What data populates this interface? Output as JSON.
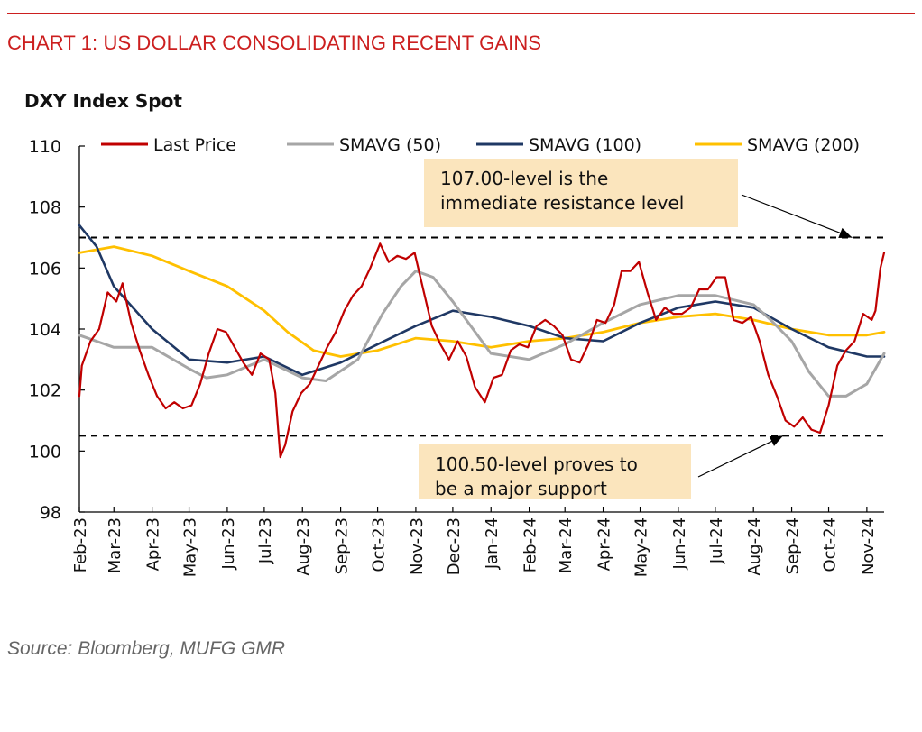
{
  "header": {
    "heading": "CHART 1: US DOLLAR CONSOLIDATING RECENT GAINS",
    "source": "Source: Bloomberg, MUFG GMR"
  },
  "colors": {
    "accent": "#cc1f1f",
    "last_price": "#c00000",
    "smavg50": "#a6a6a6",
    "smavg100": "#1f3864",
    "smavg200": "#ffc000",
    "annotation_bg": "#fbe5bd"
  },
  "chart_data": {
    "type": "line",
    "title": "DXY Index Spot",
    "ylim": [
      98,
      110
    ],
    "yticks": [
      98,
      100,
      102,
      104,
      106,
      108,
      110
    ],
    "xlim": [
      "2023-02-01",
      "2024-11-15"
    ],
    "x_tick_labels": [
      "Feb-23",
      "Mar-23",
      "Apr-23",
      "May-23",
      "Jun-23",
      "Jul-23",
      "Aug-23",
      "Sep-23",
      "Oct-23",
      "Nov-23",
      "Dec-23",
      "Jan-24",
      "Feb-24",
      "Mar-24",
      "Apr-24",
      "May-24",
      "Jun-24",
      "Jul-24",
      "Aug-24",
      "Sep-24",
      "Oct-24",
      "Nov-24"
    ],
    "legend_position": "top",
    "grid": false,
    "reference_lines": [
      {
        "y": 107.0,
        "style": "dashed"
      },
      {
        "y": 100.5,
        "style": "dashed"
      }
    ],
    "annotations": [
      {
        "text_lines": [
          "107.00-level is the",
          "immediate resistance level"
        ],
        "arrow_to": {
          "x": "2024-10-20",
          "y": 107.0
        }
      },
      {
        "text_lines": [
          "100.50-level proves to",
          "be a major support"
        ],
        "arrow_to": {
          "x": "2024-08-25",
          "y": 100.5
        }
      }
    ],
    "series": [
      {
        "name": "Last Price",
        "x": [
          "2023-02-01",
          "2023-02-03",
          "2023-02-10",
          "2023-02-17",
          "2023-02-24",
          "2023-03-03",
          "2023-03-08",
          "2023-03-15",
          "2023-03-22",
          "2023-03-29",
          "2023-04-05",
          "2023-04-12",
          "2023-04-19",
          "2023-04-26",
          "2023-05-03",
          "2023-05-10",
          "2023-05-17",
          "2023-05-24",
          "2023-05-31",
          "2023-06-07",
          "2023-06-14",
          "2023-06-21",
          "2023-06-28",
          "2023-07-05",
          "2023-07-10",
          "2023-07-14",
          "2023-07-18",
          "2023-07-24",
          "2023-07-31",
          "2023-08-07",
          "2023-08-14",
          "2023-08-21",
          "2023-08-28",
          "2023-09-04",
          "2023-09-11",
          "2023-09-18",
          "2023-09-25",
          "2023-10-03",
          "2023-10-10",
          "2023-10-17",
          "2023-10-24",
          "2023-10-31",
          "2023-11-07",
          "2023-11-14",
          "2023-11-21",
          "2023-11-28",
          "2023-12-05",
          "2023-12-12",
          "2023-12-19",
          "2023-12-27",
          "2024-01-03",
          "2024-01-10",
          "2024-01-17",
          "2024-01-24",
          "2024-01-31",
          "2024-02-07",
          "2024-02-14",
          "2024-02-21",
          "2024-02-28",
          "2024-03-06",
          "2024-03-13",
          "2024-03-20",
          "2024-03-27",
          "2024-04-03",
          "2024-04-10",
          "2024-04-16",
          "2024-04-23",
          "2024-04-30",
          "2024-05-07",
          "2024-05-14",
          "2024-05-21",
          "2024-05-28",
          "2024-06-04",
          "2024-06-11",
          "2024-06-18",
          "2024-06-25",
          "2024-07-02",
          "2024-07-09",
          "2024-07-16",
          "2024-07-23",
          "2024-07-30",
          "2024-08-06",
          "2024-08-13",
          "2024-08-20",
          "2024-08-27",
          "2024-09-03",
          "2024-09-10",
          "2024-09-17",
          "2024-09-24",
          "2024-10-01",
          "2024-10-08",
          "2024-10-15",
          "2024-10-22",
          "2024-10-29",
          "2024-11-05",
          "2024-11-08",
          "2024-11-12",
          "2024-11-15"
        ],
        "values": [
          101.8,
          102.8,
          103.6,
          104.0,
          105.2,
          104.9,
          105.5,
          104.2,
          103.3,
          102.5,
          101.8,
          101.4,
          101.6,
          101.4,
          101.5,
          102.2,
          103.2,
          104.0,
          103.9,
          103.4,
          102.9,
          102.5,
          103.2,
          103.0,
          101.9,
          99.8,
          100.2,
          101.3,
          101.9,
          102.2,
          102.8,
          103.4,
          103.9,
          104.6,
          105.1,
          105.4,
          106.0,
          106.8,
          106.2,
          106.4,
          106.3,
          106.5,
          105.3,
          104.1,
          103.5,
          103.0,
          103.6,
          103.1,
          102.1,
          101.6,
          102.4,
          102.5,
          103.3,
          103.5,
          103.4,
          104.1,
          104.3,
          104.1,
          103.8,
          103.0,
          102.9,
          103.5,
          104.3,
          104.2,
          104.8,
          105.9,
          105.9,
          106.2,
          105.2,
          104.3,
          104.7,
          104.5,
          104.5,
          104.7,
          105.3,
          105.3,
          105.7,
          105.7,
          104.3,
          104.2,
          104.4,
          103.6,
          102.5,
          101.8,
          101.0,
          100.8,
          101.1,
          100.7,
          100.6,
          101.5,
          102.8,
          103.3,
          103.6,
          104.5,
          104.3,
          104.6,
          106.0,
          106.5
        ]
      },
      {
        "name": "SMAVG (50)",
        "x": [
          "2023-02-01",
          "2023-03-01",
          "2023-04-01",
          "2023-05-01",
          "2023-05-15",
          "2023-06-01",
          "2023-07-01",
          "2023-08-01",
          "2023-08-20",
          "2023-09-15",
          "2023-10-05",
          "2023-10-20",
          "2023-11-01",
          "2023-11-15",
          "2023-12-01",
          "2024-01-01",
          "2024-02-01",
          "2024-03-01",
          "2024-04-01",
          "2024-05-01",
          "2024-06-01",
          "2024-07-01",
          "2024-08-01",
          "2024-08-15",
          "2024-09-01",
          "2024-09-15",
          "2024-10-01",
          "2024-10-15",
          "2024-11-01",
          "2024-11-15"
        ],
        "values": [
          103.8,
          103.4,
          103.4,
          102.7,
          102.4,
          102.5,
          103.0,
          102.4,
          102.3,
          103.0,
          104.5,
          105.4,
          105.9,
          105.7,
          104.9,
          103.2,
          103.0,
          103.5,
          104.2,
          104.8,
          105.1,
          105.1,
          104.8,
          104.3,
          103.6,
          102.6,
          101.8,
          101.8,
          102.2,
          103.2
        ]
      },
      {
        "name": "SMAVG (100)",
        "x": [
          "2023-02-01",
          "2023-02-15",
          "2023-03-01",
          "2023-04-01",
          "2023-05-01",
          "2023-06-01",
          "2023-07-01",
          "2023-08-01",
          "2023-09-01",
          "2023-10-01",
          "2023-11-01",
          "2023-12-01",
          "2024-01-01",
          "2024-02-01",
          "2024-03-01",
          "2024-04-01",
          "2024-05-01",
          "2024-06-01",
          "2024-07-01",
          "2024-08-01",
          "2024-09-01",
          "2024-10-01",
          "2024-11-01",
          "2024-11-15"
        ],
        "values": [
          107.4,
          106.7,
          105.4,
          104.0,
          103.0,
          102.9,
          103.1,
          102.5,
          102.9,
          103.5,
          104.1,
          104.6,
          104.4,
          104.1,
          103.7,
          103.6,
          104.2,
          104.7,
          104.9,
          104.7,
          104.0,
          103.4,
          103.1,
          103.1
        ]
      },
      {
        "name": "SMAVG (200)",
        "x": [
          "2023-02-01",
          "2023-03-01",
          "2023-04-01",
          "2023-05-01",
          "2023-06-01",
          "2023-07-01",
          "2023-07-20",
          "2023-08-10",
          "2023-09-01",
          "2023-10-01",
          "2023-11-01",
          "2023-12-01",
          "2024-01-01",
          "2024-02-01",
          "2024-03-01",
          "2024-04-01",
          "2024-05-01",
          "2024-06-01",
          "2024-07-01",
          "2024-08-01",
          "2024-09-01",
          "2024-10-01",
          "2024-11-01",
          "2024-11-15"
        ],
        "values": [
          106.5,
          106.7,
          106.4,
          105.9,
          105.4,
          104.6,
          103.9,
          103.3,
          103.1,
          103.3,
          103.7,
          103.6,
          103.4,
          103.6,
          103.7,
          103.9,
          104.2,
          104.4,
          104.5,
          104.3,
          104.0,
          103.8,
          103.8,
          103.9
        ]
      }
    ]
  }
}
